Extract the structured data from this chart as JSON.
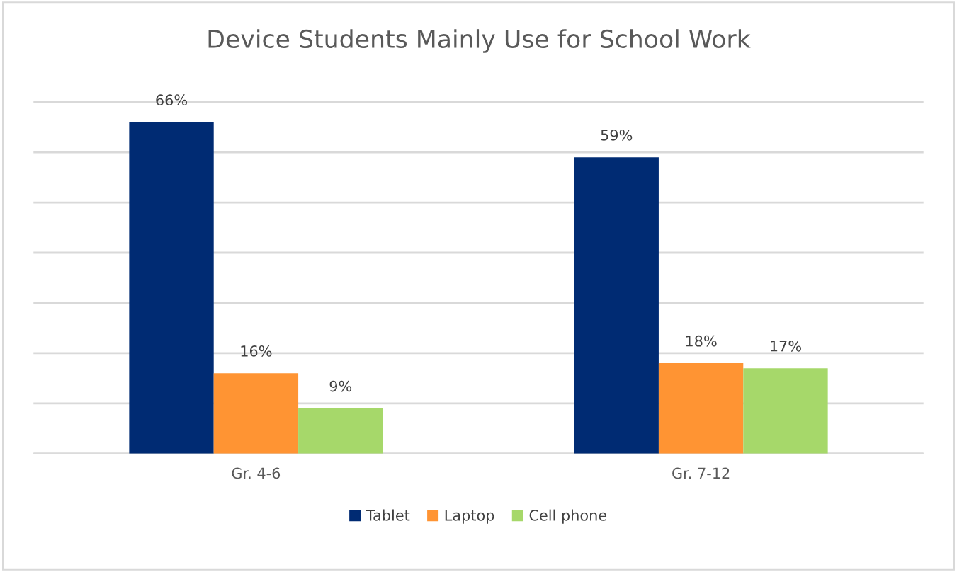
{
  "chart_data": {
    "type": "bar",
    "title": "Device Students Mainly Use for School Work",
    "categories": [
      "Gr. 4-6",
      "Gr. 7-12"
    ],
    "series": [
      {
        "name": "Tablet",
        "color": "#002b73",
        "values": [
          66,
          59
        ],
        "value_labels": [
          "66%",
          "59%"
        ]
      },
      {
        "name": "Laptop",
        "color": "#ff9433",
        "values": [
          16,
          18
        ],
        "value_labels": [
          "16%",
          "18%"
        ]
      },
      {
        "name": "Cell phone",
        "color": "#a6d86a",
        "values": [
          9,
          17
        ],
        "value_labels": [
          "9%",
          "17%"
        ]
      }
    ],
    "tick_labels": "x",
    "grid": "y",
    "legend": "bottom"
  }
}
